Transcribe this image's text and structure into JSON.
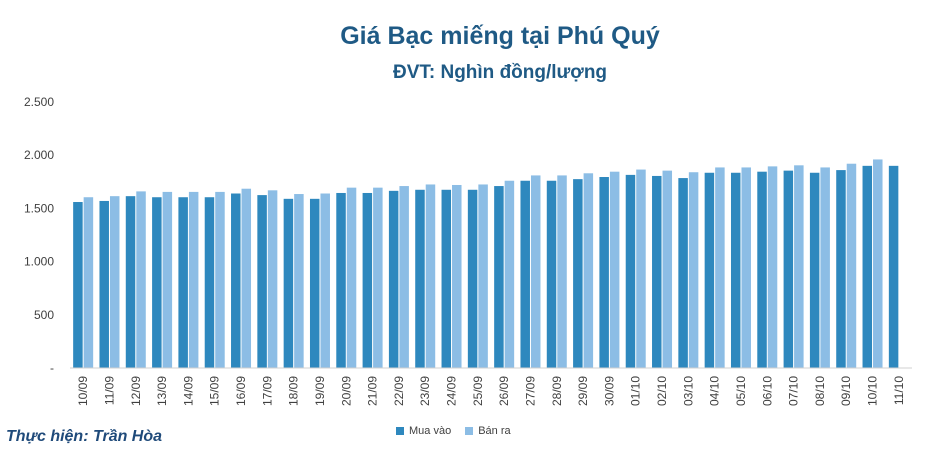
{
  "chart_data": {
    "type": "bar",
    "title": "Giá Bạc miếng tại Phú Quý",
    "subtitle": "ĐVT: Nghìn đồng/lượng",
    "categories": [
      "10/09",
      "11/09",
      "12/09",
      "13/09",
      "14/09",
      "15/09",
      "16/09",
      "17/09",
      "18/09",
      "19/09",
      "20/09",
      "21/09",
      "22/09",
      "23/09",
      "24/09",
      "25/09",
      "26/09",
      "27/09",
      "28/09",
      "29/09",
      "30/09",
      "01/10",
      "02/10",
      "03/10",
      "04/10",
      "05/10",
      "06/10",
      "07/10",
      "08/10",
      "09/10",
      "10/10",
      "11/10"
    ],
    "series": [
      {
        "name": "Mua vào",
        "color": "#2e88be",
        "values": [
          1560,
          1570,
          1615,
          1605,
          1605,
          1605,
          1640,
          1625,
          1590,
          1590,
          1645,
          1645,
          1665,
          1675,
          1675,
          1675,
          1710,
          1760,
          1760,
          1775,
          1795,
          1815,
          1805,
          1785,
          1835,
          1835,
          1845,
          1855,
          1835,
          1860,
          1900,
          1900
        ]
      },
      {
        "name": "Bán ra",
        "color": "#8cbde5",
        "values": [
          1605,
          1615,
          1660,
          1655,
          1655,
          1655,
          1685,
          1670,
          1635,
          1640,
          1695,
          1695,
          1710,
          1725,
          1720,
          1725,
          1760,
          1810,
          1810,
          1830,
          1845,
          1865,
          1855,
          1840,
          1885,
          1885,
          1895,
          1905,
          1885,
          1920,
          1960,
          null
        ]
      }
    ],
    "yticks": [
      "-",
      "500",
      "1.000",
      "1.500",
      "2.000",
      "2.500"
    ],
    "ylim": [
      0,
      2500
    ],
    "grid": false,
    "legend": "bottom"
  },
  "footer": {
    "credit": "Thực hiện: Trần Hòa"
  }
}
